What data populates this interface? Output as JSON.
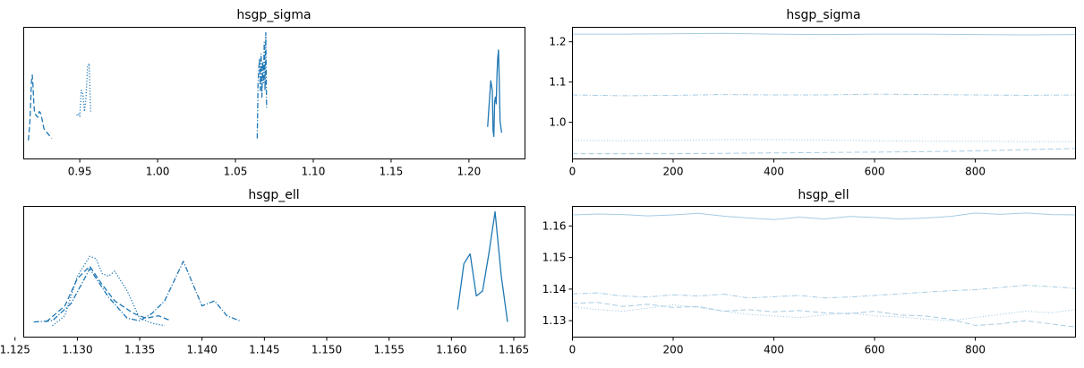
{
  "chart_data": [
    {
      "type": "line",
      "kind": "density",
      "title": "hsgp_sigma",
      "xlim": [
        0.914,
        1.236
      ],
      "xticks": [
        "0.95",
        "1.00",
        "1.05",
        "1.10",
        "1.15",
        "1.20"
      ],
      "xtick_values": [
        0.95,
        1.0,
        1.05,
        1.1,
        1.15,
        1.2
      ],
      "yticks": [],
      "color": "#1f77b4",
      "series": [
        {
          "linestyle": "dashed",
          "x": [
            0.917,
            0.918,
            0.919,
            0.9195,
            0.92,
            0.9205,
            0.921,
            0.922,
            0.923,
            0.924,
            0.925,
            0.926,
            0.927,
            0.928,
            0.929,
            0.93,
            0.931,
            0.932
          ],
          "y": [
            0.1,
            0.3,
            0.72,
            0.78,
            0.66,
            0.48,
            0.38,
            0.36,
            0.34,
            0.4,
            0.38,
            0.3,
            0.22,
            0.2,
            0.18,
            0.16,
            0.14,
            0.12
          ]
        },
        {
          "linestyle": "dotted",
          "x": [
            0.948,
            0.949,
            0.95,
            0.951,
            0.952,
            0.953,
            0.954,
            0.955,
            0.956,
            0.957
          ],
          "y": [
            0.36,
            0.38,
            0.35,
            0.62,
            0.58,
            0.4,
            0.55,
            0.86,
            0.9,
            0.4
          ]
        },
        {
          "linestyle": "dashdot",
          "x": [
            1.064,
            1.0645,
            1.065,
            1.0655,
            1.066,
            1.0665,
            1.067,
            1.0675,
            1.068,
            1.0685,
            1.069,
            1.0695,
            1.07
          ],
          "y": [
            0.12,
            0.68,
            0.85,
            0.95,
            0.62,
            1.0,
            0.55,
            0.92,
            0.7,
            1.12,
            0.62,
            1.22,
            0.44
          ]
        },
        {
          "linestyle": "solid",
          "x": [
            1.212,
            1.213,
            1.214,
            1.215,
            1.2155,
            1.216,
            1.2165,
            1.217,
            1.2175,
            1.218,
            1.2185,
            1.219,
            1.2195,
            1.22,
            1.221
          ],
          "y": [
            0.24,
            0.48,
            0.72,
            0.62,
            0.2,
            0.14,
            0.5,
            0.55,
            0.48,
            0.78,
            0.96,
            1.04,
            0.7,
            0.3,
            0.18
          ]
        }
      ]
    },
    {
      "type": "line",
      "kind": "trace",
      "title": "hsgp_sigma",
      "xlim": [
        0,
        999
      ],
      "ylim": [
        0.909,
        1.236
      ],
      "xticks": [
        "0",
        "200",
        "400",
        "600",
        "800"
      ],
      "xtick_values": [
        0,
        200,
        400,
        600,
        800
      ],
      "yticks": [
        "1.0",
        "1.1",
        "1.2"
      ],
      "ytick_values": [
        1.0,
        1.1,
        1.2
      ],
      "color": "#a6cbe3",
      "series": [
        {
          "linestyle": "solid",
          "x": [
            0,
            100,
            200,
            300,
            400,
            500,
            600,
            700,
            800,
            900,
            999
          ],
          "y": [
            1.219,
            1.219,
            1.22,
            1.221,
            1.219,
            1.218,
            1.219,
            1.219,
            1.218,
            1.217,
            1.218
          ]
        },
        {
          "linestyle": "dashdot",
          "x": [
            0,
            100,
            200,
            300,
            400,
            500,
            600,
            700,
            800,
            900,
            999
          ],
          "y": [
            1.068,
            1.066,
            1.067,
            1.069,
            1.068,
            1.068,
            1.07,
            1.069,
            1.068,
            1.067,
            1.068
          ]
        },
        {
          "linestyle": "dotted",
          "x": [
            0,
            100,
            200,
            300,
            400,
            500,
            600,
            700,
            800,
            900,
            999
          ],
          "y": [
            0.955,
            0.954,
            0.955,
            0.957,
            0.957,
            0.956,
            0.954,
            0.953,
            0.953,
            0.952,
            0.952
          ]
        },
        {
          "linestyle": "dashed",
          "x": [
            0,
            100,
            200,
            300,
            400,
            500,
            600,
            700,
            800,
            900,
            999
          ],
          "y": [
            0.922,
            0.922,
            0.922,
            0.923,
            0.924,
            0.925,
            0.926,
            0.927,
            0.929,
            0.932,
            0.935
          ]
        }
      ]
    },
    {
      "type": "line",
      "kind": "density",
      "title": "hsgp_ell",
      "xlim": [
        1.1257,
        1.1659
      ],
      "xticks": [
        "1.125",
        "1.130",
        "1.135",
        "1.140",
        "1.145",
        "1.150",
        "1.155",
        "1.160",
        "1.165"
      ],
      "xtick_values": [
        1.125,
        1.13,
        1.135,
        1.14,
        1.145,
        1.15,
        1.155,
        1.16,
        1.165
      ],
      "yticks": [],
      "color": "#1f77b4",
      "series": [
        {
          "linestyle": "solid",
          "x": [
            1.1605,
            1.161,
            1.1615,
            1.162,
            1.1625,
            1.163,
            1.1635,
            1.164,
            1.1645
          ],
          "y": [
            0.15,
            0.52,
            0.6,
            0.26,
            0.3,
            0.6,
            0.94,
            0.42,
            0.05
          ]
        },
        {
          "linestyle": "dotted",
          "x": [
            1.128,
            1.129,
            1.13,
            1.131,
            1.1315,
            1.132,
            1.1325,
            1.133,
            1.134,
            1.135,
            1.136,
            1.137
          ],
          "y": [
            0.02,
            0.1,
            0.42,
            0.58,
            0.56,
            0.44,
            0.42,
            0.46,
            0.3,
            0.08,
            0.04,
            0.02
          ]
        },
        {
          "linestyle": "dashdot",
          "x": [
            1.1265,
            1.128,
            1.1295,
            1.131,
            1.1325,
            1.134,
            1.135,
            1.136,
            1.137,
            1.1385,
            1.14,
            1.141,
            1.142,
            1.143
          ],
          "y": [
            0.05,
            0.06,
            0.2,
            0.48,
            0.25,
            0.08,
            0.06,
            0.12,
            0.22,
            0.54,
            0.18,
            0.22,
            0.1,
            0.06
          ]
        },
        {
          "linestyle": "dashed",
          "x": [
            1.1275,
            1.129,
            1.13,
            1.131,
            1.132,
            1.133,
            1.1345,
            1.1355,
            1.1365,
            1.1375
          ],
          "y": [
            0.05,
            0.18,
            0.4,
            0.5,
            0.35,
            0.22,
            0.12,
            0.08,
            0.1,
            0.06
          ]
        }
      ]
    },
    {
      "type": "line",
      "kind": "trace",
      "title": "hsgp_ell",
      "xlim": [
        0,
        999
      ],
      "ylim": [
        1.1248,
        1.1662
      ],
      "xticks": [
        "0",
        "200",
        "400",
        "600",
        "800"
      ],
      "xtick_values": [
        0,
        200,
        400,
        600,
        800
      ],
      "yticks": [
        "1.13",
        "1.14",
        "1.15",
        "1.16"
      ],
      "ytick_values": [
        1.13,
        1.14,
        1.15,
        1.16
      ],
      "color": "#a6cbe3",
      "series": [
        {
          "linestyle": "solid",
          "x": [
            0,
            50,
            100,
            150,
            200,
            250,
            300,
            350,
            400,
            450,
            500,
            550,
            600,
            650,
            700,
            750,
            800,
            850,
            900,
            950,
            999
          ],
          "y": [
            1.1635,
            1.1638,
            1.1636,
            1.1632,
            1.1635,
            1.164,
            1.1631,
            1.1625,
            1.162,
            1.1628,
            1.1622,
            1.163,
            1.1627,
            1.1622,
            1.1625,
            1.163,
            1.1641,
            1.1637,
            1.1641,
            1.1636,
            1.1635
          ]
        },
        {
          "linestyle": "dashdot",
          "x": [
            0,
            50,
            100,
            150,
            200,
            250,
            300,
            350,
            400,
            450,
            500,
            550,
            600,
            650,
            700,
            750,
            800,
            850,
            900,
            950,
            999
          ],
          "y": [
            1.1385,
            1.1388,
            1.1378,
            1.1375,
            1.1382,
            1.1378,
            1.1384,
            1.1372,
            1.1376,
            1.138,
            1.1372,
            1.1375,
            1.138,
            1.1385,
            1.139,
            1.1395,
            1.1398,
            1.1405,
            1.1412,
            1.1408,
            1.1402
          ]
        },
        {
          "linestyle": "dotted",
          "x": [
            0,
            50,
            100,
            150,
            200,
            250,
            300,
            350,
            400,
            450,
            500,
            550,
            600,
            650,
            700,
            750,
            800,
            850,
            900,
            950,
            999
          ],
          "y": [
            1.1345,
            1.1335,
            1.133,
            1.134,
            1.135,
            1.1342,
            1.133,
            1.132,
            1.1315,
            1.131,
            1.1318,
            1.1325,
            1.1315,
            1.1312,
            1.1305,
            1.13,
            1.131,
            1.132,
            1.133,
            1.1325,
            1.1335
          ]
        },
        {
          "linestyle": "dashed",
          "x": [
            0,
            50,
            100,
            150,
            200,
            250,
            300,
            350,
            400,
            450,
            500,
            550,
            600,
            650,
            700,
            750,
            800,
            850,
            900,
            950,
            999
          ],
          "y": [
            1.1355,
            1.1358,
            1.1345,
            1.1352,
            1.1342,
            1.1345,
            1.133,
            1.1335,
            1.1328,
            1.1332,
            1.1325,
            1.1322,
            1.133,
            1.1318,
            1.1315,
            1.1305,
            1.1285,
            1.129,
            1.13,
            1.129,
            1.128
          ]
        }
      ]
    }
  ]
}
